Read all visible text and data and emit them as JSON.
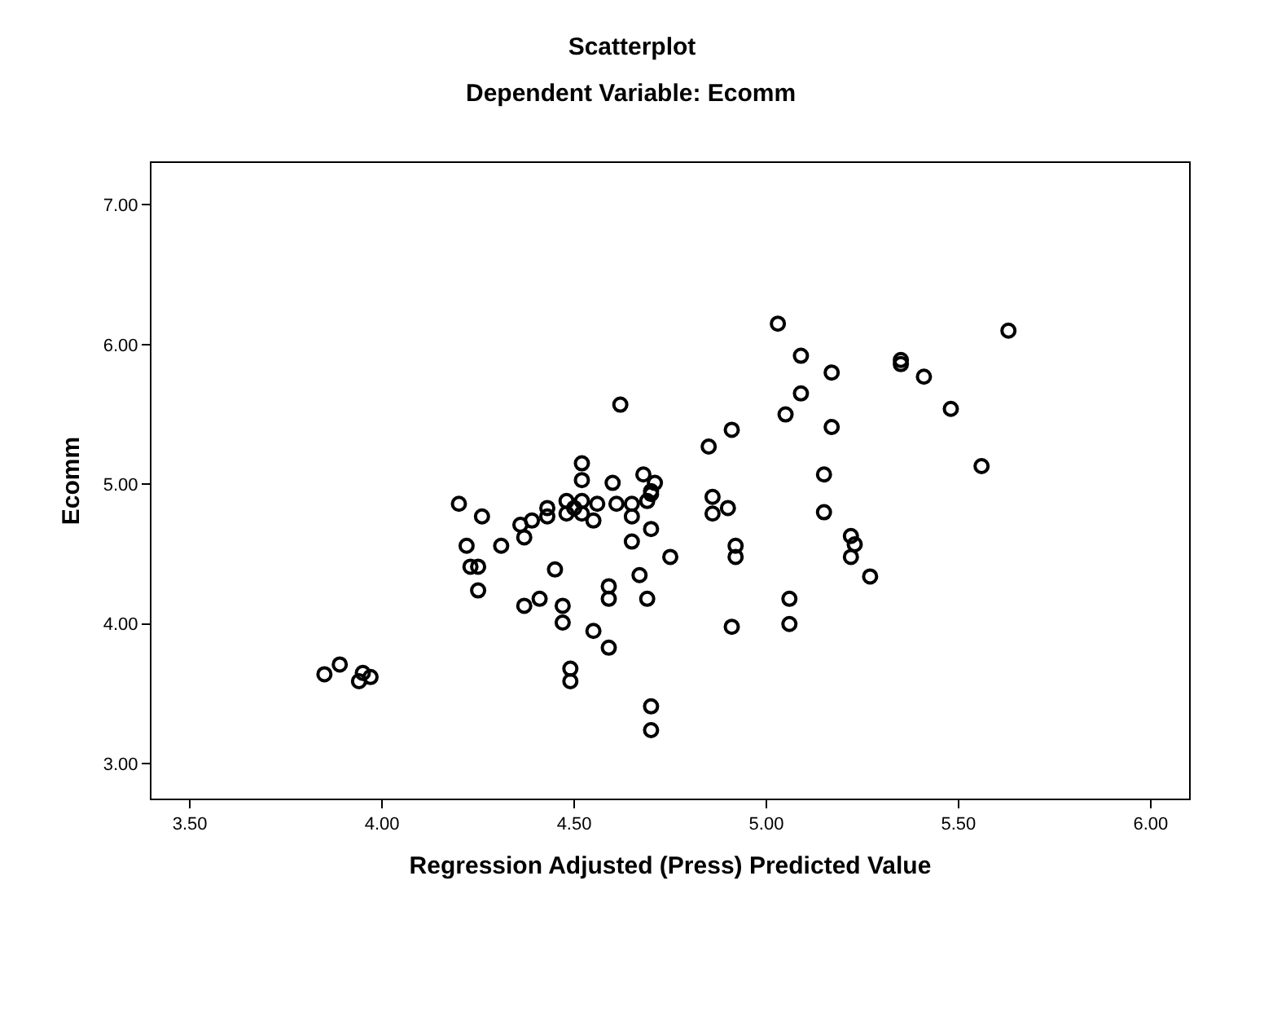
{
  "chart_data": {
    "type": "scatter",
    "title": "Scatterplot",
    "subtitle": "Dependent Variable: Ecomm",
    "xlabel": "Regression Adjusted (Press) Predicted Value",
    "ylabel": "Ecomm",
    "x": [
      4.2,
      4.26,
      4.22,
      4.31,
      4.23,
      4.25,
      4.25,
      3.85,
      3.89,
      3.95,
      3.97,
      3.94,
      4.62,
      4.52,
      4.52,
      4.6,
      4.68,
      4.71,
      4.7,
      4.7,
      4.69,
      4.48,
      4.52,
      4.56,
      4.61,
      4.65,
      4.43,
      4.5,
      4.48,
      4.52,
      4.43,
      4.39,
      4.65,
      4.55,
      4.36,
      4.37,
      4.7,
      4.65,
      4.75,
      4.45,
      4.67,
      4.59,
      4.59,
      4.69,
      4.41,
      4.37,
      4.47,
      4.47,
      4.55,
      4.59,
      4.49,
      4.49,
      4.7,
      4.7,
      4.91,
      5.06,
      5.06,
      5.03,
      5.63,
      5.09,
      5.35,
      5.35,
      5.17,
      5.41,
      5.09,
      5.05,
      5.48,
      5.17,
      4.91,
      4.85,
      5.56,
      5.15,
      4.86,
      4.9,
      4.86,
      5.15,
      4.92,
      4.92,
      5.22,
      5.23,
      5.22,
      5.27
    ],
    "values": [
      4.86,
      4.77,
      4.56,
      4.56,
      4.41,
      4.41,
      4.24,
      3.64,
      3.71,
      3.65,
      3.62,
      3.59,
      5.57,
      5.15,
      5.03,
      5.01,
      5.07,
      5.01,
      4.95,
      4.93,
      4.88,
      4.88,
      4.88,
      4.86,
      4.86,
      4.86,
      4.83,
      4.83,
      4.79,
      4.79,
      4.77,
      4.74,
      4.77,
      4.74,
      4.71,
      4.62,
      4.68,
      4.59,
      4.48,
      4.39,
      4.35,
      4.27,
      4.18,
      4.18,
      4.18,
      4.13,
      4.13,
      4.01,
      3.95,
      3.83,
      3.68,
      3.59,
      3.41,
      3.24,
      3.98,
      4.18,
      4.0,
      6.15,
      6.1,
      5.92,
      5.89,
      5.86,
      5.8,
      5.77,
      5.65,
      5.5,
      5.54,
      5.41,
      5.39,
      5.27,
      5.13,
      5.07,
      4.91,
      4.83,
      4.79,
      4.8,
      4.56,
      4.48,
      4.63,
      4.57,
      4.48,
      4.34
    ],
    "color": "#000000",
    "marker": "circle",
    "legend": false,
    "xlim": [
      3.4,
      6.1
    ],
    "xticks": [
      {
        "value": 3.5,
        "label": "3.50"
      },
      {
        "value": 4.0,
        "label": "4.00"
      },
      {
        "value": 4.5,
        "label": "4.50"
      },
      {
        "value": 5.0,
        "label": "5.00"
      },
      {
        "value": 5.5,
        "label": "5.50"
      },
      {
        "value": 6.0,
        "label": "6.00"
      }
    ],
    "ylim": [
      2.75,
      7.3
    ],
    "yticks": [
      {
        "value": 3,
        "label": "3.00"
      },
      {
        "value": 4,
        "label": "4.00"
      },
      {
        "value": 5,
        "label": "5.00"
      },
      {
        "value": 6,
        "label": "6.00"
      },
      {
        "value": 7,
        "label": "7.00"
      }
    ],
    "grid": false
  }
}
